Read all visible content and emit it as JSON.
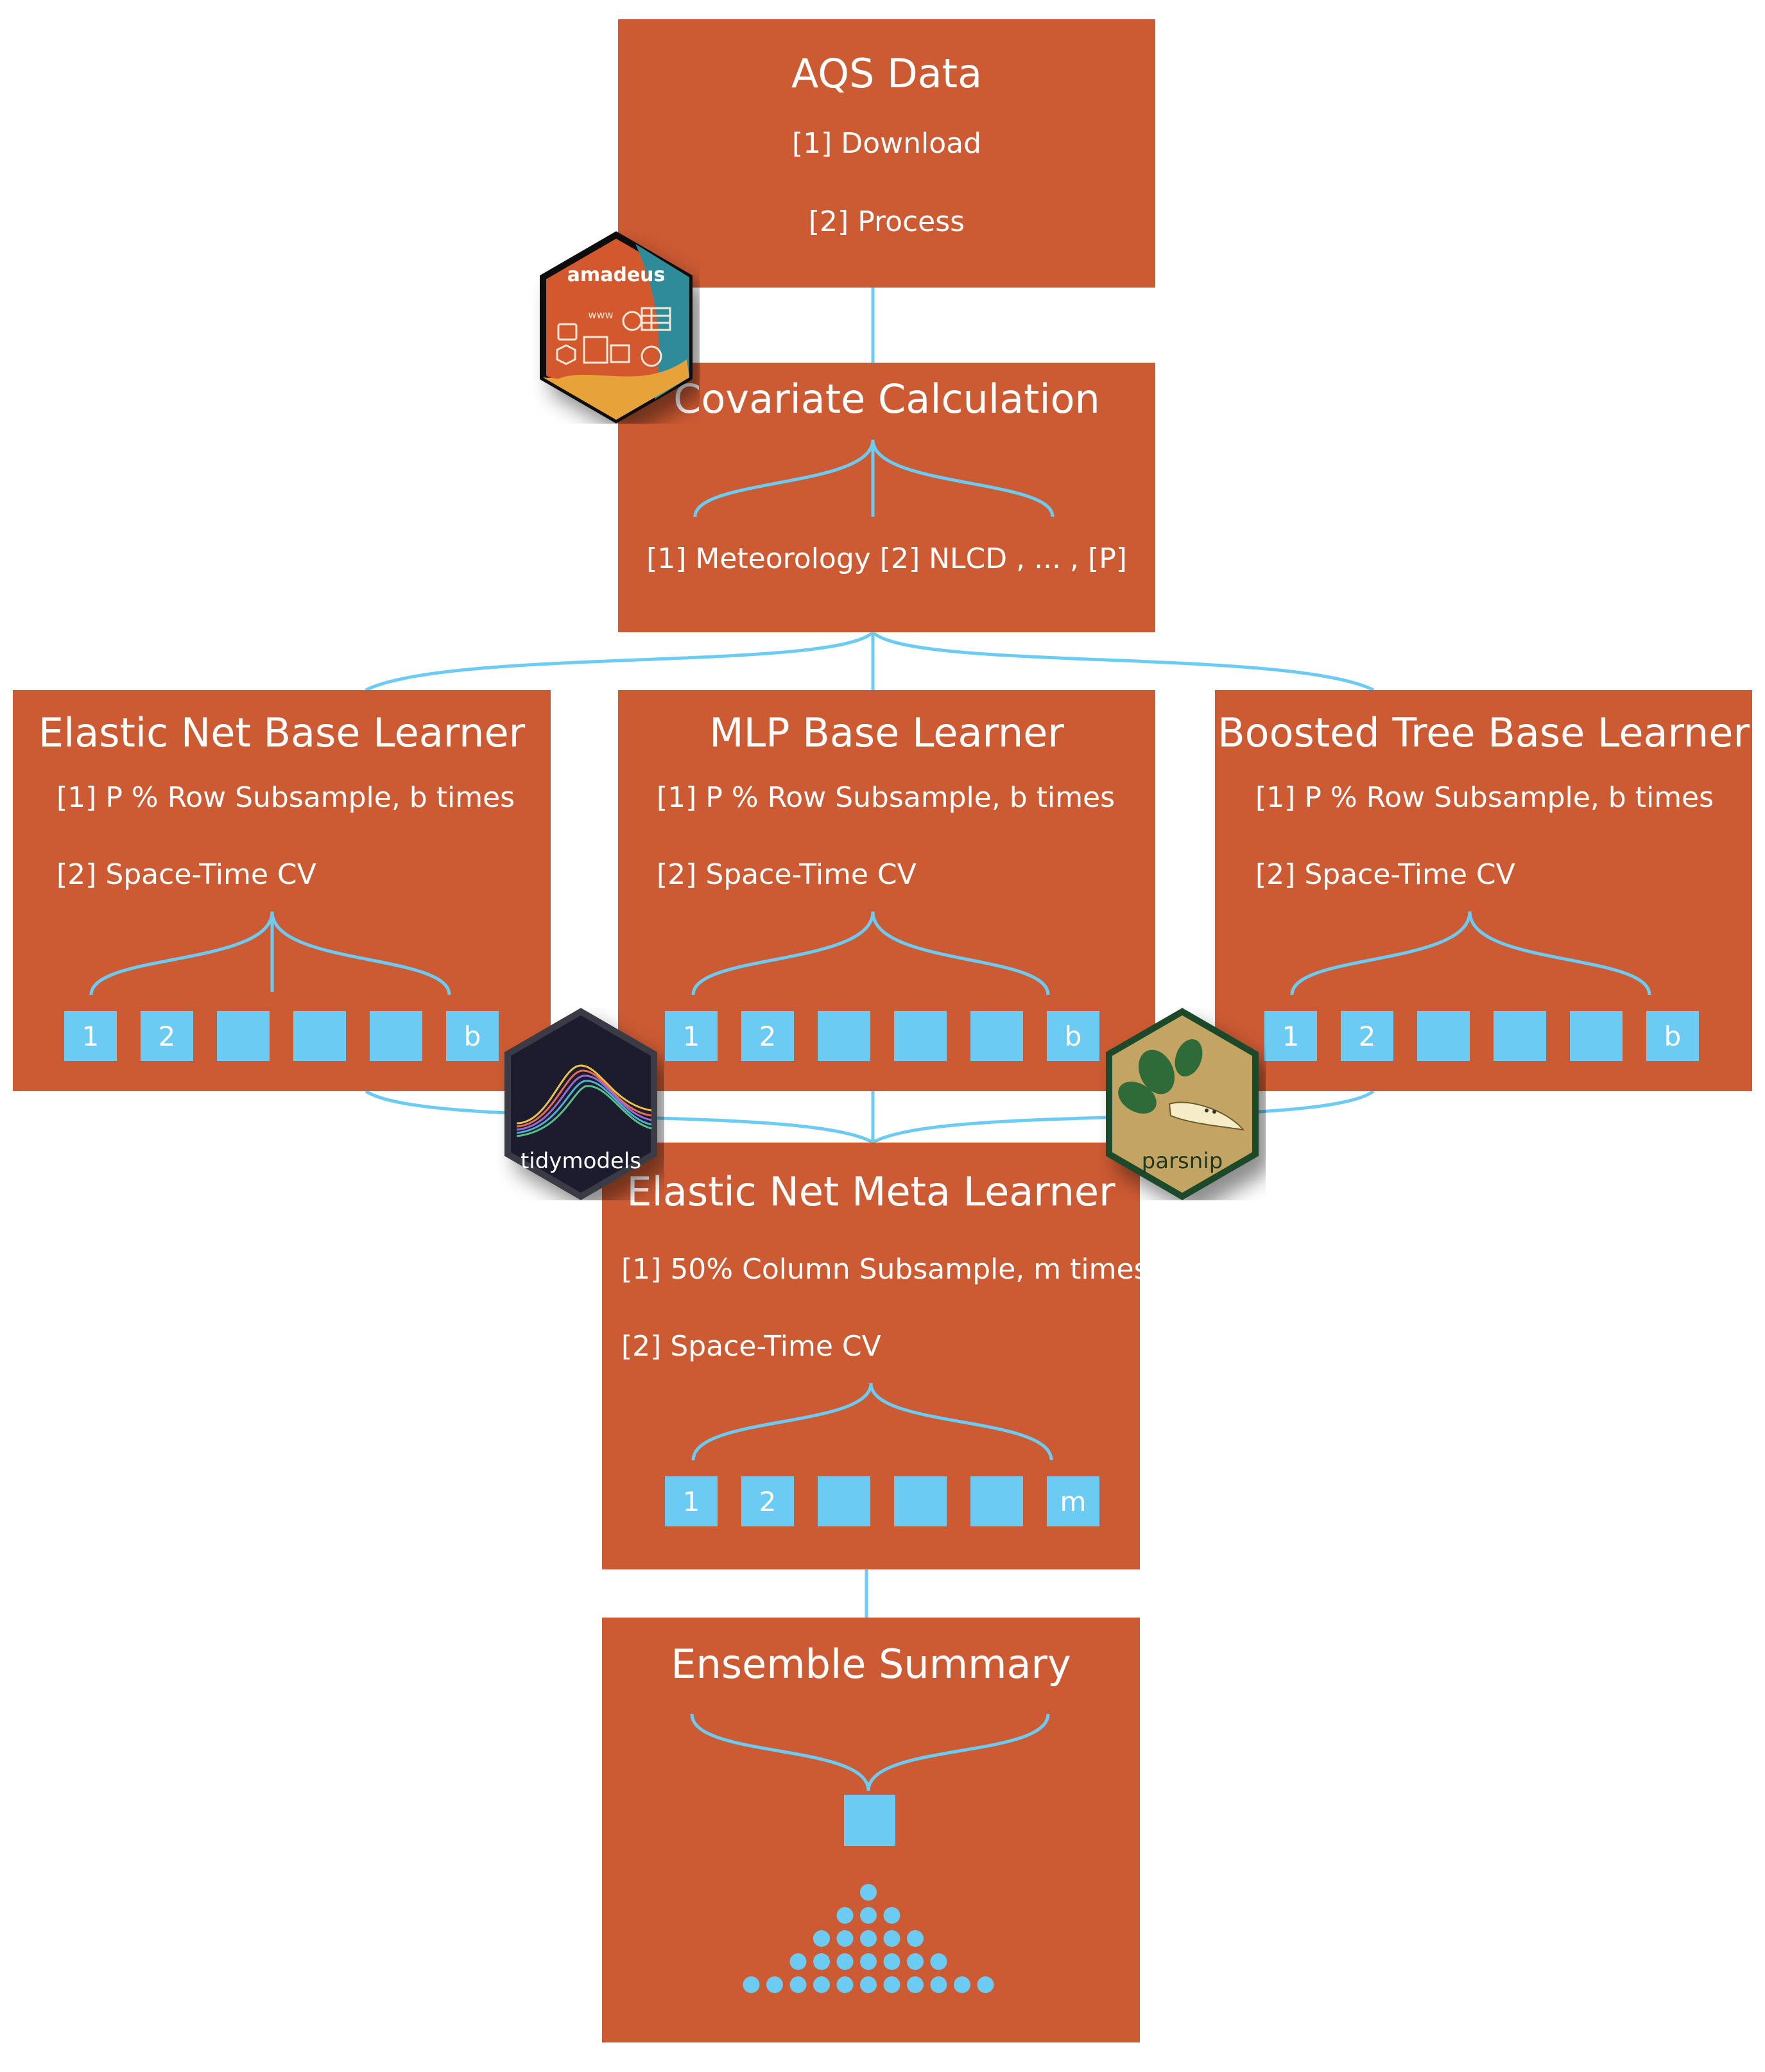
{
  "boxes": {
    "aqs": {
      "title": "AQS Data",
      "lines": [
        "[1] Download",
        "[2] Process"
      ]
    },
    "covariate": {
      "title": "Covariate Calculation",
      "lines": [
        "[1] Meteorology [2] NLCD , ... ,  [P]"
      ]
    },
    "elastic_base": {
      "title": "Elastic Net Base Learner",
      "lines": [
        "[1] P % Row Subsample, b times",
        "[2] Space-Time CV"
      ],
      "squares": [
        "1",
        "2",
        "",
        "",
        "",
        "b"
      ]
    },
    "mlp_base": {
      "title": "MLP Base Learner",
      "lines": [
        "[1] P % Row Subsample, b times",
        "[2] Space-Time CV"
      ],
      "squares": [
        "1",
        "2",
        "",
        "",
        "",
        "b"
      ]
    },
    "boosted_base": {
      "title": "Boosted Tree Base Learner",
      "lines": [
        "[1] P % Row Subsample, b times",
        "[2] Space-Time CV"
      ],
      "squares": [
        "1",
        "2",
        "",
        "",
        "",
        "b"
      ]
    },
    "meta": {
      "title": "Elastic Net Meta Learner",
      "lines": [
        "[1] 50% Column Subsample, m times",
        "[2] Space-Time CV"
      ],
      "squares": [
        "1",
        "2",
        "",
        "",
        "",
        "m"
      ]
    },
    "ensemble": {
      "title": "Ensemble Summary",
      "dot_rows": [
        1,
        3,
        5,
        7,
        11
      ]
    }
  },
  "logos": {
    "amadeus": {
      "label": "amadeus",
      "icon": "amadeus-hex-logo-icon"
    },
    "tidymodels": {
      "label": "tidymodels",
      "icon": "tidymodels-hex-logo-icon"
    },
    "parsnip": {
      "label": "parsnip",
      "icon": "parsnip-hex-logo-icon"
    }
  },
  "colors": {
    "box": "#CC5A33",
    "accent": "#6BCBF2",
    "text": "#FFFFFF",
    "tidymodels_bg": "#1A1A2E",
    "parsnip_bg": "#C4A463",
    "parsnip_border": "#1E4A2C",
    "amadeus_bg": "#D4582E"
  }
}
